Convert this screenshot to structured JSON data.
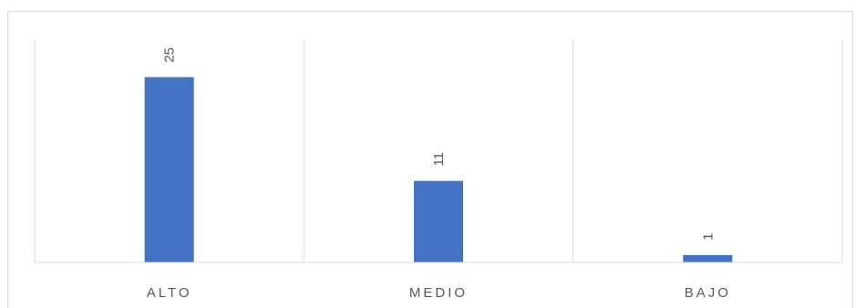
{
  "chart_data": {
    "type": "bar",
    "categories": [
      "ALTO",
      "MEDIO",
      "BAJO"
    ],
    "values": [
      25,
      11,
      1
    ],
    "title": "",
    "xlabel": "",
    "ylabel": "",
    "ylim": [
      0,
      30
    ],
    "grid": true,
    "legend": "none",
    "bar_color": "#4472c4",
    "label_color": "#595959",
    "grid_color": "#d9d9d9"
  }
}
